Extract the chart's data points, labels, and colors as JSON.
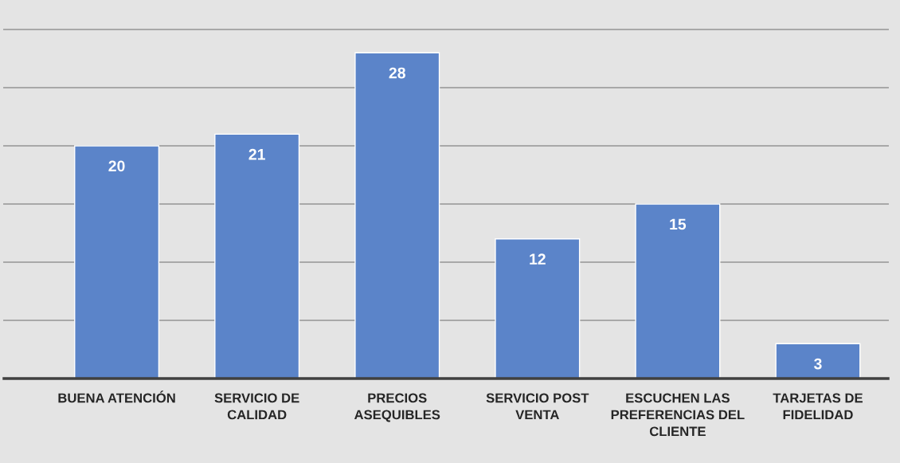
{
  "chart_data": {
    "type": "bar",
    "categories": [
      "BUENA ATENCIÓN",
      "SERVICIO DE CALIDAD",
      "PRECIOS ASEQUIBLES",
      "SERVICIO POST VENTA",
      "ESCUCHEN LAS PREFERENCIAS DEL CLIENTE",
      "TARJETAS DE FIDELIDAD"
    ],
    "values": [
      20,
      21,
      28,
      12,
      15,
      3
    ],
    "color": "#5b84c9",
    "ylim": [
      0,
      30
    ],
    "yticks": [
      {
        "value": 5,
        "label": null
      },
      {
        "value": 10,
        "label": null
      },
      {
        "value": 15,
        "label": null
      },
      {
        "value": 20,
        "label": null
      },
      {
        "value": 25,
        "label": null
      },
      {
        "value": 30,
        "label": null
      }
    ],
    "grid": "y",
    "tick_labels": "x",
    "data_labels": true
  }
}
